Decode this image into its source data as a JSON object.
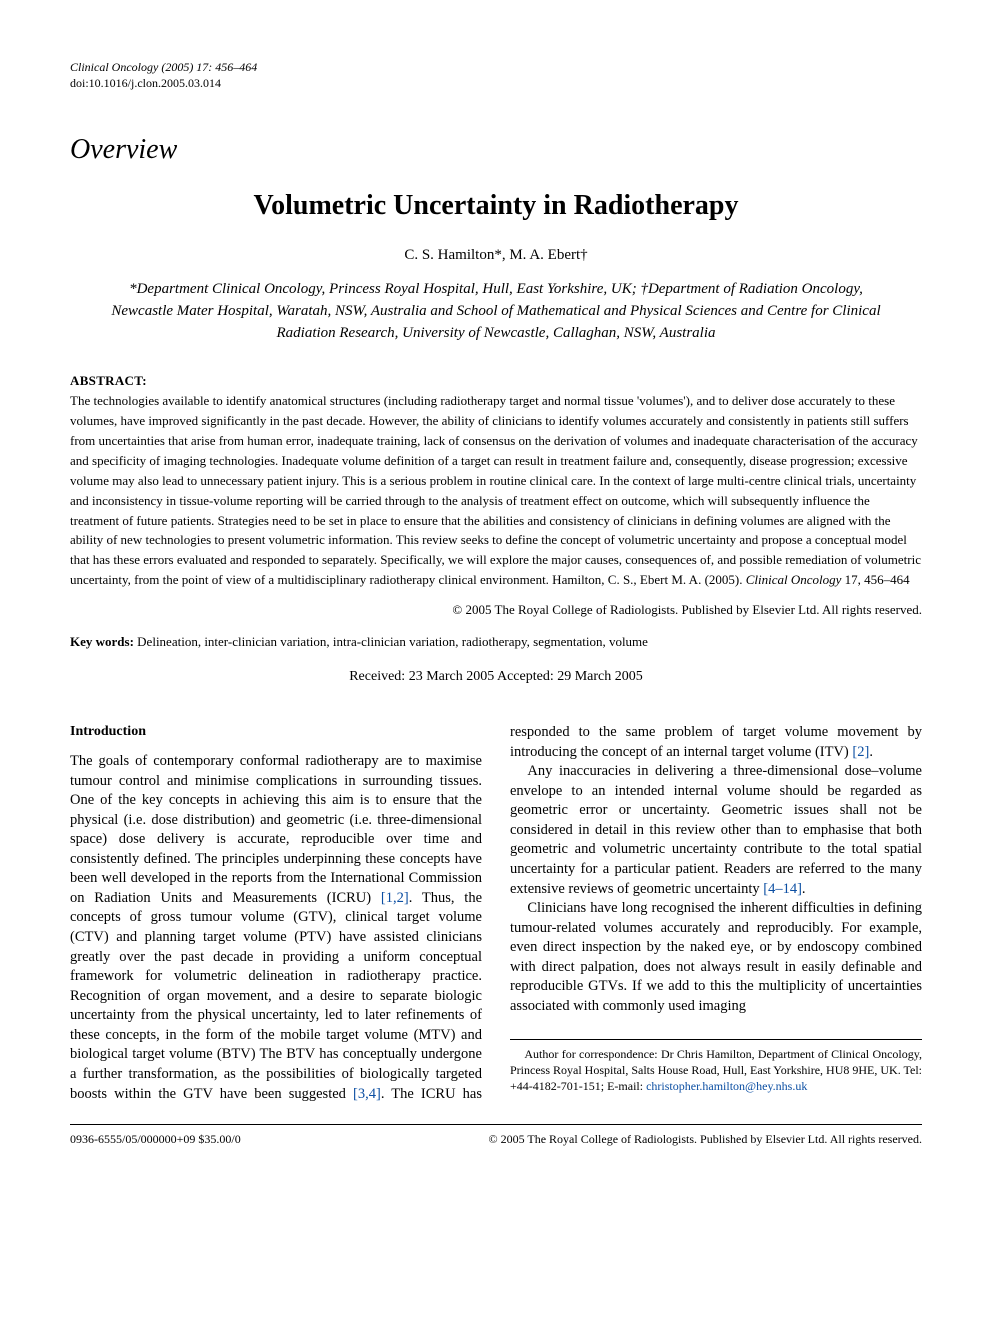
{
  "meta": {
    "journal_line": "Clinical Oncology (2005) 17: 456–464",
    "doi_line": "doi:10.1016/j.clon.2005.03.014"
  },
  "overview_label": "Overview",
  "title": "Volumetric Uncertainty in Radiotherapy",
  "authors": "C. S. Hamilton*, M. A. Ebert†",
  "affiliations": "*Department Clinical Oncology, Princess Royal Hospital, Hull, East Yorkshire, UK; †Department of Radiation Oncology, Newcastle Mater Hospital, Waratah, NSW, Australia and School of Mathematical and Physical Sciences and Centre for Clinical Radiation Research, University of Newcastle, Callaghan, NSW, Australia",
  "abstract": {
    "heading": "ABSTRACT:",
    "text_part1": "The technologies available to identify anatomical structures (including radiotherapy target and normal tissue 'volumes'), and to deliver dose accurately to these volumes, have improved significantly in the past decade. However, the ability of clinicians to identify volumes accurately and consistently in patients still suffers from uncertainties that arise from human error, inadequate training, lack of consensus on the derivation of volumes and inadequate characterisation of the accuracy and specificity of imaging technologies. Inadequate volume definition of a target can result in treatment failure and, consequently, disease progression; excessive volume may also lead to unnecessary patient injury. This is a serious problem in routine clinical care. In the context of large multi-centre clinical trials, uncertainty and inconsistency in tissue-volume reporting will be carried through to the analysis of treatment effect on outcome, which will subsequently influence the treatment of future patients. Strategies need to be set in place to ensure that the abilities and consistency of clinicians in defining volumes are aligned with the ability of new technologies to present volumetric information. This review seeks to define the concept of volumetric uncertainty and propose a conceptual model that has these errors evaluated and responded to separately. Specifically, we will explore the major causes, consequences of, and possible remediation of volumetric uncertainty, from the point of view of a multidisciplinary radiotherapy clinical environment. Hamilton, C. S., Ebert M. A. (2005). ",
    "self_citation_journal": "Clinical Oncology",
    "self_citation_rest": " 17, 456–464",
    "copyright": "© 2005 The Royal College of Radiologists. Published by Elsevier Ltd. All rights reserved."
  },
  "keywords": {
    "label": "Key words:",
    "text": " Delineation, inter-clinician variation, intra-clinician variation, radiotherapy, segmentation, volume"
  },
  "dates": {
    "received_label": "Received: ",
    "received_value": "23 March 2005",
    "accepted_label": "   Accepted: ",
    "accepted_value": "29 March 2005"
  },
  "body": {
    "intro_heading": "Introduction",
    "p1_a": "The goals of contemporary conformal radiotherapy are to maximise tumour control and minimise complications in surrounding tissues. One of the key concepts in achieving this aim is to ensure that the physical (i.e. dose distribution) and geometric (i.e. three-dimensional space) dose delivery is accurate, reproducible over time and consistently defined. The principles underpinning these concepts have been well developed in the reports from the International Commission on Radiation Units and Measurements (ICRU) ",
    "p1_ref1": "[1,2]",
    "p1_b": ". Thus, the concepts of gross tumour volume (GTV), clinical target volume (CTV) and planning target volume (PTV) have assisted clinicians greatly over the past decade in providing a uniform conceptual framework for volumetric delineation in radiotherapy practice. Recognition of organ movement, and a desire to separate biologic uncertainty from the physical uncertainty, led to later refinements of these concepts, in the form of the mobile target volume (MTV) and biological target volume (BTV) The BTV has conceptually undergone a further transformation, as the possibilities of biologically targeted boosts within the GTV have been suggested ",
    "p1_ref2": "[3,4]",
    "p1_c": ". The ICRU has responded to the same problem of target volume movement by introducing the concept of an internal target volume (ITV) ",
    "p1_ref3": "[2]",
    "p1_d": ".",
    "p2_a": "Any inaccuracies in delivering a three-dimensional dose–volume envelope to an intended internal volume should be regarded as geometric error or uncertainty. Geometric issues shall not be considered in detail in this review other than to emphasise that both geometric and volumetric uncertainty contribute to the total spatial uncertainty for a particular patient. Readers are referred to the many extensive reviews of geometric uncertainty ",
    "p2_ref1": "[4–14]",
    "p2_b": ".",
    "p3": "Clinicians have long recognised the inherent difficulties in defining tumour-related volumes accurately and reproducibly. For example, even direct inspection by the naked eye, or by endoscopy combined with direct palpation, does not always result in easily definable and reproducible GTVs. If we add to this the multiplicity of uncertainties associated with commonly used imaging"
  },
  "correspondence": {
    "text_a": "Author for correspondence: Dr Chris Hamilton, Department of Clinical Oncology, Princess Royal Hospital, Salts House Road, Hull, East Yorkshire, HU8 9HE, UK. Tel: +44-4182-701-151;  E-mail: ",
    "email": "christopher.hamilton@hey.nhs.uk"
  },
  "footer": {
    "left": "0936-6555/05/000000+09 $35.00/0",
    "right": "© 2005 The Royal College of Radiologists. Published by Elsevier Ltd. All rights reserved."
  },
  "colors": {
    "link": "#0b4ea2",
    "text": "#000000",
    "background": "#ffffff"
  },
  "typography": {
    "base_font": "Times New Roman",
    "title_fontsize_pt": 21,
    "overview_fontsize_pt": 21,
    "body_fontsize_pt": 11,
    "abstract_fontsize_pt": 10,
    "meta_fontsize_pt": 9
  }
}
